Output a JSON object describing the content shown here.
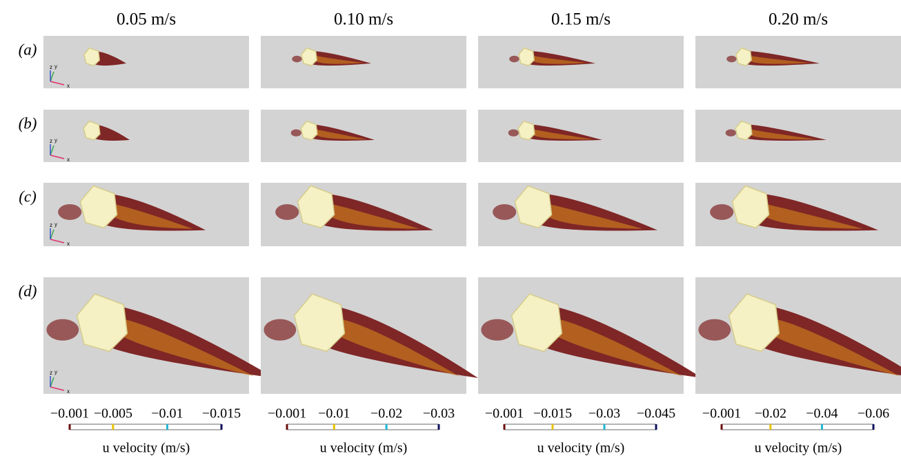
{
  "columns": [
    {
      "title": "0.05 m/s",
      "colorbar": {
        "label": "u velocity (m/s)",
        "ticks": [
          {
            "value": -0.001,
            "label": "−0.001"
          },
          {
            "value": -0.005,
            "label": "−0.005"
          },
          {
            "value": -0.01,
            "label": "−0.01"
          },
          {
            "value": -0.015,
            "label": "−0.015"
          }
        ]
      }
    },
    {
      "title": "0.10 m/s",
      "colorbar": {
        "label": "u velocity (m/s)",
        "ticks": [
          {
            "value": -0.001,
            "label": "−0.001"
          },
          {
            "value": -0.01,
            "label": "−0.01"
          },
          {
            "value": -0.02,
            "label": "−0.02"
          },
          {
            "value": -0.03,
            "label": "−0.03"
          }
        ]
      }
    },
    {
      "title": "0.15 m/s",
      "colorbar": {
        "label": "u velocity (m/s)",
        "ticks": [
          {
            "value": -0.001,
            "label": "−0.001"
          },
          {
            "value": -0.015,
            "label": "−0.015"
          },
          {
            "value": -0.03,
            "label": "−0.03"
          },
          {
            "value": -0.045,
            "label": "−0.045"
          }
        ]
      }
    },
    {
      "title": "0.20 m/s",
      "colorbar": {
        "label": "u velocity (m/s)",
        "ticks": [
          {
            "value": -0.001,
            "label": "−0.001"
          },
          {
            "value": -0.02,
            "label": "−0.02"
          },
          {
            "value": -0.04,
            "label": "−0.04"
          },
          {
            "value": -0.06,
            "label": "−0.06"
          }
        ]
      }
    }
  ],
  "colorbar_colors": [
    "#6b0d0d",
    "#e6c200",
    "#22b4d4",
    "#10105e"
  ],
  "rows": [
    "(a)",
    "(b)",
    "(c)",
    "(d)"
  ],
  "axis_triad": [
    "z",
    "y",
    "x"
  ]
}
